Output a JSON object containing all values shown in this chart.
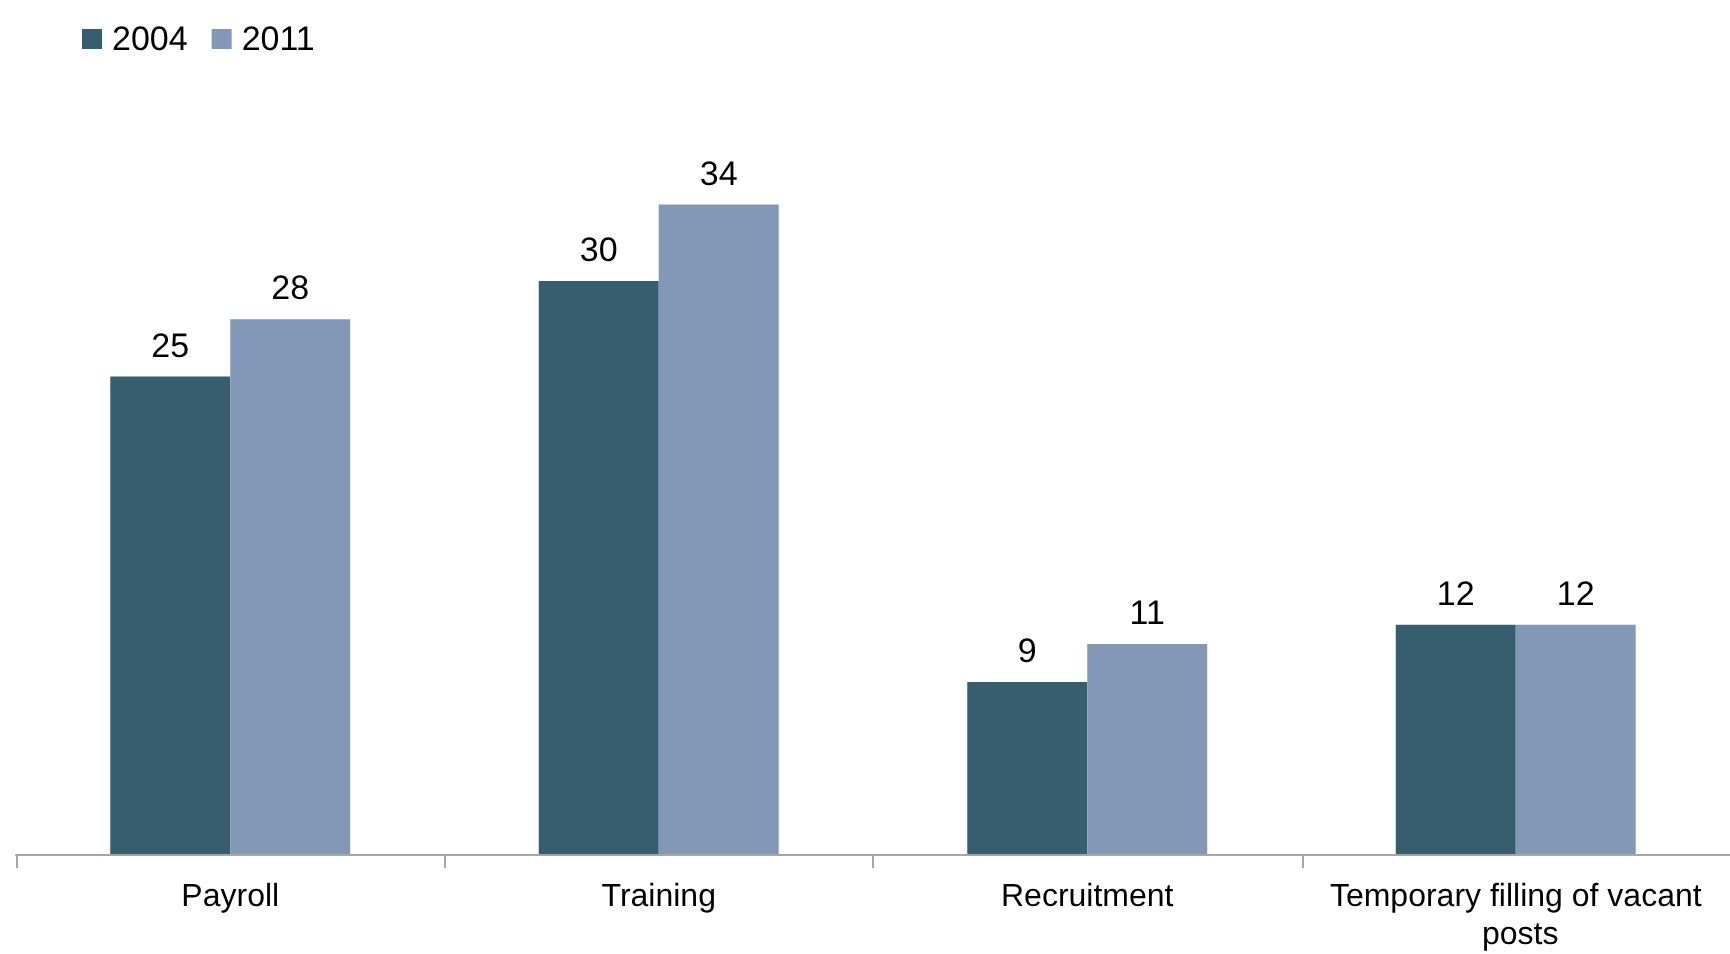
{
  "chart_data": {
    "type": "bar",
    "categories": [
      "Payroll",
      "Training",
      "Recruitment",
      "Temporary filling of vacant posts"
    ],
    "series": [
      {
        "name": "2004",
        "color": "#375e6e",
        "values": [
          25,
          30,
          9,
          12
        ]
      },
      {
        "name": "2011",
        "color": "#8398b6",
        "values": [
          28,
          34,
          11,
          12
        ]
      }
    ],
    "data_labels": true,
    "legend": "top left"
  }
}
